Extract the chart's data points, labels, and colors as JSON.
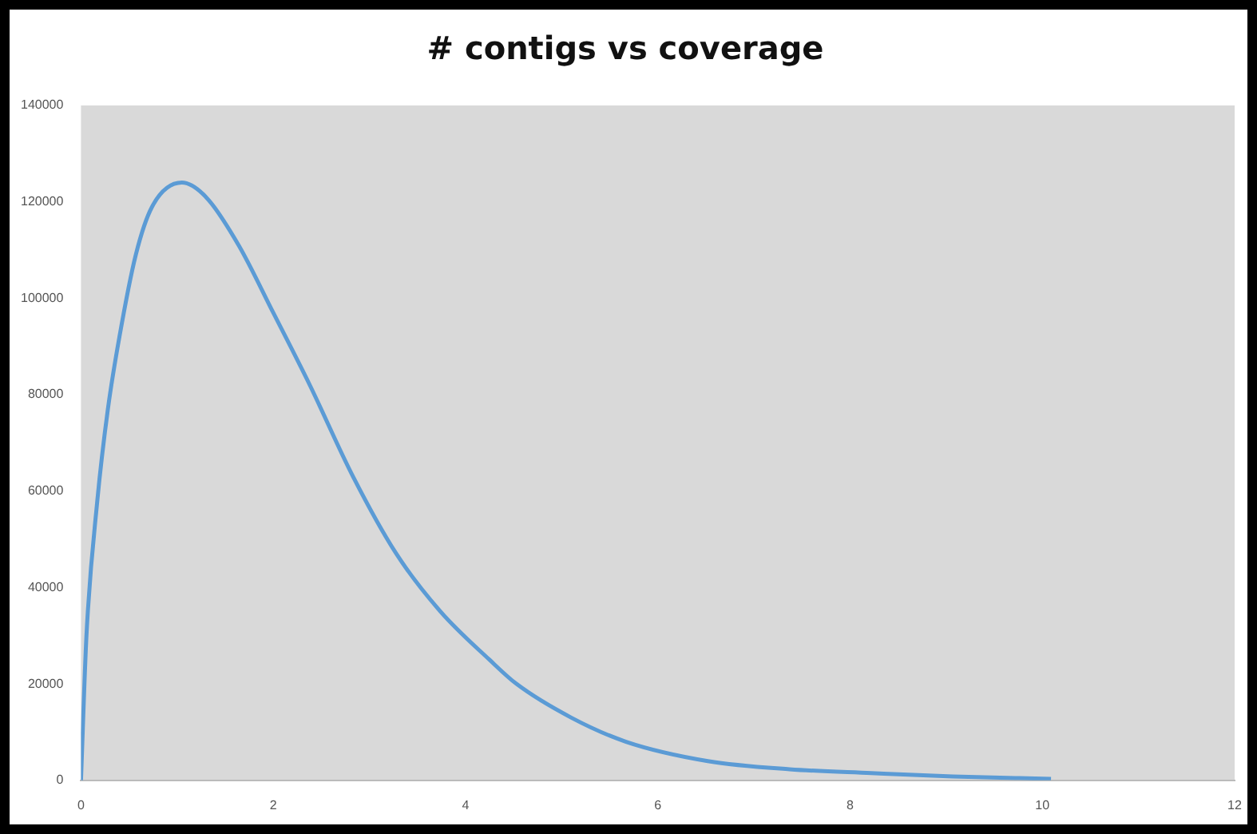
{
  "chart_data": {
    "type": "line",
    "title": "# contigs vs coverage",
    "x": [
      0,
      0.057,
      0.17,
      0.28,
      0.4,
      0.57,
      0.74,
      1.05,
      1.3,
      1.64,
      2.0,
      2.38,
      2.83,
      3.28,
      3.74,
      4.25,
      4.53,
      5.1,
      5.67,
      6.52,
      7.37,
      8.22,
      9.07,
      10.09
    ],
    "series": [
      {
        "color": "#5b9bd5",
        "values": [
          0,
          30000,
          58000,
          77000,
          92000,
          109000,
          119000,
          124000,
          121000,
          111000,
          97000,
          82000,
          63000,
          47000,
          35000,
          25000,
          20000,
          13000,
          8000,
          4000,
          2300,
          1500,
          800,
          300
        ]
      }
    ],
    "xlim": [
      0,
      12
    ],
    "xticks": [
      0,
      2,
      4,
      6,
      8,
      10,
      12
    ],
    "ylim": [
      0,
      140000
    ],
    "yticks": [
      0,
      20000,
      40000,
      60000,
      80000,
      100000,
      120000,
      140000
    ],
    "grid": false,
    "legend": false,
    "marker": "none",
    "line_style": "solid"
  }
}
